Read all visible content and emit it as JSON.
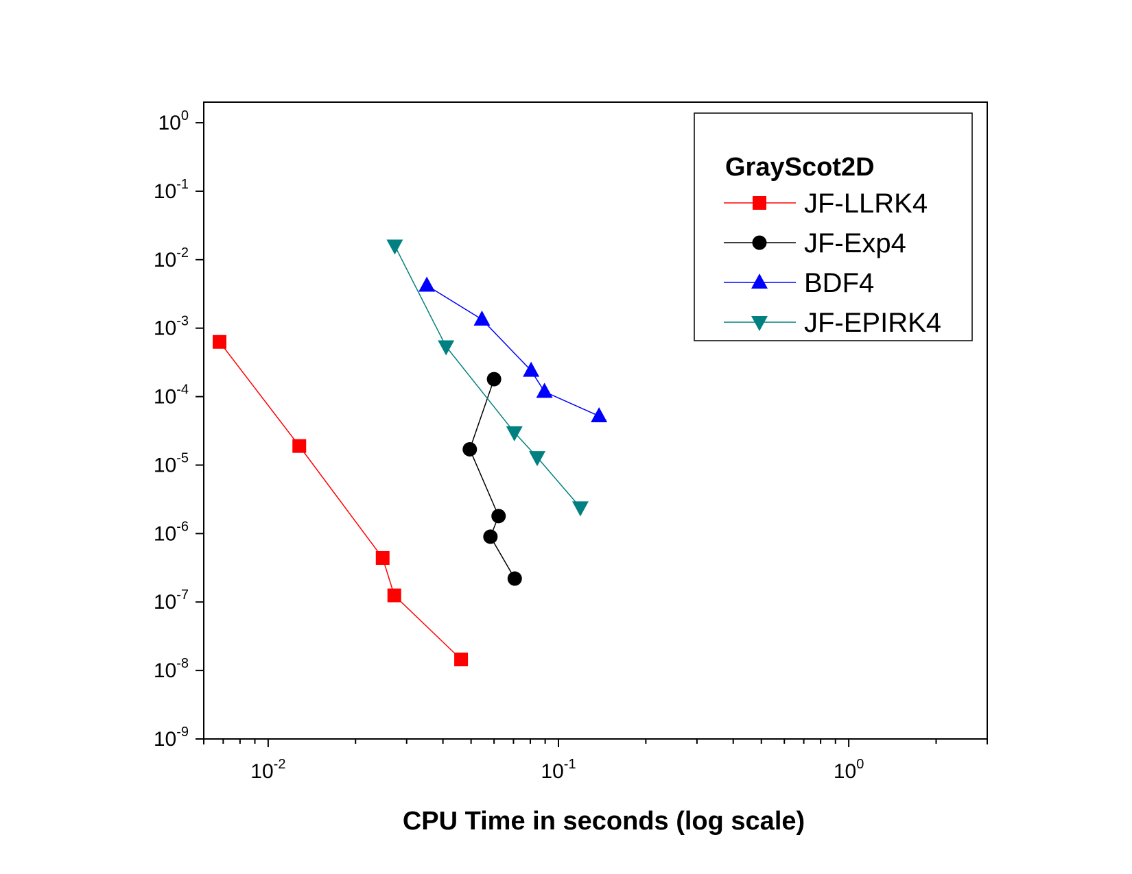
{
  "chart_data": {
    "type": "line",
    "title": "",
    "xlabel": "CPU Time in seconds (log scale)",
    "ylabel": "",
    "xscale": "log",
    "yscale": "log",
    "xlim": [
      0.006,
      3
    ],
    "ylim": [
      1e-09,
      2
    ],
    "grid": false,
    "legend": {
      "title": "GrayScot2D",
      "placement": "top-right"
    },
    "x_ticks": [
      {
        "base": "10",
        "exp": "-2",
        "value": 0.01
      },
      {
        "base": "10",
        "exp": "-1",
        "value": 0.1
      },
      {
        "base": "10",
        "exp": "0",
        "value": 1
      }
    ],
    "y_ticks": [
      {
        "base": "10",
        "exp": "0",
        "value": 1
      },
      {
        "base": "10",
        "exp": "-1",
        "value": 0.1
      },
      {
        "base": "10",
        "exp": "-2",
        "value": 0.01
      },
      {
        "base": "10",
        "exp": "-3",
        "value": 0.001
      },
      {
        "base": "10",
        "exp": "-4",
        "value": 0.0001
      },
      {
        "base": "10",
        "exp": "-5",
        "value": 1e-05
      },
      {
        "base": "10",
        "exp": "-6",
        "value": 1e-06
      },
      {
        "base": "10",
        "exp": "-7",
        "value": 1e-07
      },
      {
        "base": "10",
        "exp": "-8",
        "value": 1e-08
      },
      {
        "base": "10",
        "exp": "-9",
        "value": 1e-09
      }
    ],
    "series": [
      {
        "name": "JF-LLRK4",
        "color": "#ff0000",
        "marker": "square",
        "x": [
          0.0068,
          0.0128,
          0.0248,
          0.0272,
          0.0462
        ],
        "y": [
          0.00063,
          1.9e-05,
          4.4e-07,
          1.25e-07,
          1.45e-08
        ]
      },
      {
        "name": "JF-Exp4",
        "color": "#000000",
        "marker": "circle",
        "x": [
          0.06,
          0.0495,
          0.0622,
          0.0583,
          0.0707
        ],
        "y": [
          0.00018,
          1.7e-05,
          1.8e-06,
          9e-07,
          2.2e-07
        ]
      },
      {
        "name": "BDF4",
        "color": "#0000ff",
        "marker": "triangle-up",
        "x": [
          0.0352,
          0.0545,
          0.0805,
          0.0895,
          0.138
        ],
        "y": [
          0.0042,
          0.00134,
          0.00024,
          0.000118,
          5.2e-05
        ]
      },
      {
        "name": "JF-EPIRK4",
        "color": "#008080",
        "marker": "triangle-down",
        "x": [
          0.0273,
          0.041,
          0.0705,
          0.0845,
          0.119
        ],
        "y": [
          0.016,
          0.00054,
          3e-05,
          1.3e-05,
          2.4e-06
        ]
      }
    ]
  }
}
